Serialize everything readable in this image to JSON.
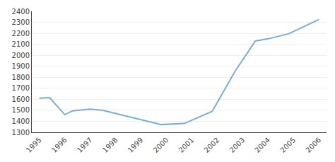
{
  "chart_data": {
    "type": "line",
    "x": [
      1995,
      1995.4,
      1996,
      1996.3,
      1997,
      1997.5,
      1999.8,
      2000.3,
      2000.7,
      2001.8,
      2002.7,
      2003.5,
      2004.0,
      2004.8,
      2006
    ],
    "values": [
      1610,
      1615,
      1460,
      1495,
      1510,
      1500,
      1370,
      1375,
      1380,
      1490,
      1855,
      2130,
      2150,
      2195,
      2325
    ],
    "color": "#7aadd4",
    "xlim": [
      1994.7,
      2006.3
    ],
    "xticks": [
      1995,
      1996,
      1997,
      1998,
      1999,
      2000,
      2001,
      2002,
      2003,
      2004,
      2005,
      2006
    ],
    "ylim": [
      1300,
      2400
    ],
    "yticks": [
      1300,
      1400,
      1500,
      1600,
      1700,
      1800,
      1900,
      2000,
      2100,
      2200,
      2300,
      2400
    ],
    "grid": true
  }
}
